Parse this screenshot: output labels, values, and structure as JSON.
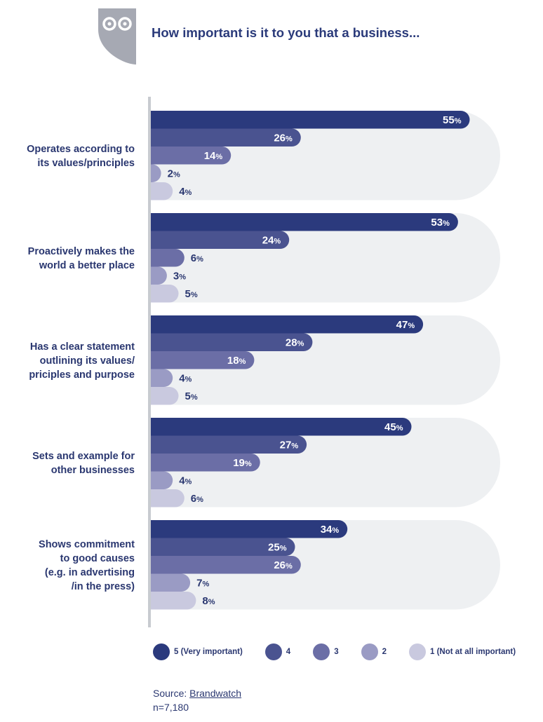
{
  "title": "How important is it to you that a business...",
  "colors": {
    "series": [
      "#2b3a7d",
      "#4a5390",
      "#6b6ea6",
      "#9a9bc4",
      "#c9c9df"
    ],
    "background_band": "#eef0f2",
    "axis": "#c8cbd0",
    "label_dark": "#2a3770",
    "label_light": "#ffffff"
  },
  "chart_data": {
    "type": "bar",
    "orientation": "horizontal",
    "categories": [
      [
        "Operates according to",
        "its values/principles"
      ],
      [
        "Proactively makes the",
        "world a better place"
      ],
      [
        "Has a clear statement",
        "outlining its values/",
        "priciples and purpose"
      ],
      [
        "Sets and example for",
        "other businesses"
      ],
      [
        "Shows commitment",
        "to good causes",
        "(e.g. in advertising",
        "/in the press)"
      ]
    ],
    "series": [
      {
        "name": "5 (Very important)",
        "values": [
          55,
          53,
          47,
          45,
          34
        ]
      },
      {
        "name": "4",
        "values": [
          26,
          24,
          28,
          27,
          25
        ]
      },
      {
        "name": "3",
        "values": [
          14,
          6,
          18,
          19,
          26
        ]
      },
      {
        "name": "2",
        "values": [
          2,
          3,
          4,
          4,
          7
        ]
      },
      {
        "name": "1 (Not at all important)",
        "values": [
          4,
          5,
          5,
          6,
          8
        ]
      }
    ],
    "unit": "%",
    "xlim": [
      0,
      100
    ],
    "grid": false,
    "legend_position": "bottom"
  },
  "source": {
    "label": "Source:",
    "link_text": "Brandwatch",
    "sample": "n=7,180"
  }
}
